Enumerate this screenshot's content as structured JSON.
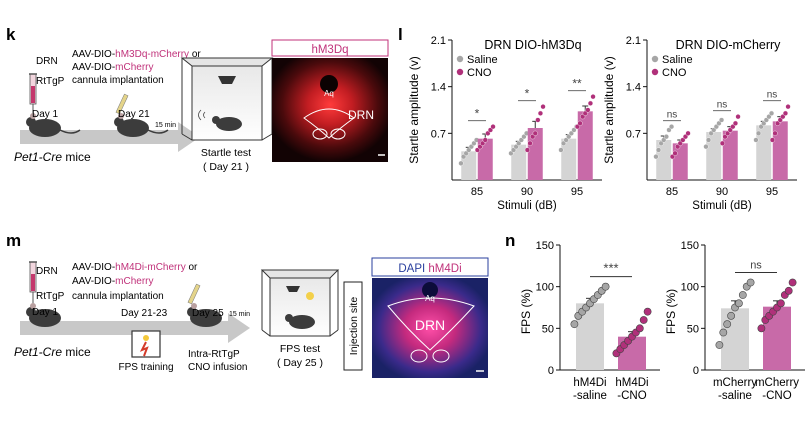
{
  "panel_k": {
    "letter": "k",
    "drn_label": "DRN",
    "rtgp_label": "RtTgP",
    "aav_line1_prefix": "AAV-DIO-",
    "aav_line1_construct": "hM3Dq-mCherry",
    "aav_line1_suffix": " or",
    "aav_line2_prefix": "AAV-DIO-",
    "aav_line2_construct": "mCherry",
    "cannula_text": "cannula implantation",
    "day1": "Day 1",
    "day21": "Day 21",
    "min15": "15 min",
    "mouse_line": "Pet1-Cre",
    "mouse_suffix": " mice",
    "test_title": "Startle test",
    "test_day": "( Day 21 )",
    "image_title": "hM3Dq",
    "image_aq": "Aq",
    "image_drn": "DRN"
  },
  "panel_l": {
    "letter": "l"
  },
  "panel_m": {
    "letter": "m",
    "drn_label": "DRN",
    "rtgp_label": "RtTgP",
    "aav_line1_prefix": "AAV-DIO-",
    "aav_line1_construct": "hM4Di-mCherry",
    "aav_line1_suffix": " or",
    "aav_line2_prefix": "AAV-DIO-",
    "aav_line2_construct": "mCherry",
    "cannula_text": "cannula implantation",
    "day1": "Day 1",
    "day21_23": "Day 21-23",
    "day25": "Day 25",
    "min15": "15 min",
    "mouse_line": "Pet1-Cre",
    "mouse_suffix": " mice",
    "fps_training": "FPS training",
    "infusion_line1": "Intra-RtTgP",
    "infusion_line2": "CNO infusion",
    "test_title": "FPS test",
    "test_day": "( Day 25 )",
    "injection_site": "Injection site",
    "image_dapi": "DAPI",
    "image_hm4di": "hM4Di",
    "image_aq": "Aq",
    "image_drn": "DRN"
  },
  "panel_n": {
    "letter": "n"
  },
  "colors": {
    "saline": "#d4d4d4",
    "saline_dot": "#a6a6a6",
    "cno": "#c86aa8",
    "cno_dot": "#b0307a",
    "magenta_text": "#c0327a",
    "arrow": "#c8c8c8",
    "red_tissue": "#e3262a",
    "blue_tissue": "#2a3f9e"
  },
  "chart_data": [
    {
      "id": "l1",
      "type": "bar",
      "title": "DRN DIO-hM3Dq",
      "xlabel": "Stimuli (dB)",
      "ylabel": "Startle amplitude (v)",
      "categories": [
        "85",
        "90",
        "95"
      ],
      "ylim": [
        0,
        2.1
      ],
      "yticks": [
        0.7,
        1.4,
        2.1
      ],
      "legend": [
        "Saline",
        "CNO"
      ],
      "series": [
        {
          "name": "Saline",
          "values": [
            0.43,
            0.53,
            0.62
          ],
          "errors": [
            0.06,
            0.05,
            0.06
          ],
          "points": [
            [
              0.25,
              0.35,
              0.4,
              0.45,
              0.5,
              0.55,
              0.6
            ],
            [
              0.4,
              0.45,
              0.5,
              0.55,
              0.6,
              0.65,
              0.7
            ],
            [
              0.45,
              0.55,
              0.6,
              0.65,
              0.7,
              0.75,
              0.8
            ]
          ]
        },
        {
          "name": "CNO",
          "values": [
            0.62,
            0.78,
            1.03
          ],
          "errors": [
            0.07,
            0.1,
            0.08
          ],
          "points": [
            [
              0.45,
              0.5,
              0.55,
              0.6,
              0.7,
              0.75,
              0.8
            ],
            [
              0.45,
              0.55,
              0.65,
              0.7,
              0.9,
              1.0,
              1.1
            ],
            [
              0.8,
              0.85,
              0.95,
              1.0,
              1.05,
              1.15,
              1.25
            ]
          ]
        }
      ],
      "significance": [
        "*",
        "*",
        "**"
      ]
    },
    {
      "id": "l2",
      "type": "bar",
      "title": "DRN DIO-mCherry",
      "xlabel": "Stimuli (dB)",
      "ylabel": "Startle amplitude (v)",
      "categories": [
        "85",
        "90",
        "95"
      ],
      "ylim": [
        0,
        2.1
      ],
      "yticks": [
        0.7,
        1.4,
        2.1
      ],
      "legend": [
        "Saline",
        "CNO"
      ],
      "series": [
        {
          "name": "Saline",
          "values": [
            0.6,
            0.72,
            0.82
          ],
          "errors": [
            0.06,
            0.05,
            0.06
          ],
          "points": [
            [
              0.35,
              0.45,
              0.55,
              0.6,
              0.65,
              0.75,
              0.8
            ],
            [
              0.5,
              0.6,
              0.7,
              0.75,
              0.8,
              0.85,
              0.9
            ],
            [
              0.6,
              0.7,
              0.8,
              0.85,
              0.9,
              0.95,
              1.0
            ]
          ]
        },
        {
          "name": "CNO",
          "values": [
            0.55,
            0.74,
            0.88
          ],
          "errors": [
            0.05,
            0.06,
            0.07
          ],
          "points": [
            [
              0.35,
              0.4,
              0.5,
              0.55,
              0.6,
              0.65,
              0.7
            ],
            [
              0.55,
              0.65,
              0.7,
              0.75,
              0.8,
              0.85,
              0.95
            ],
            [
              0.6,
              0.7,
              0.85,
              0.9,
              0.95,
              1.0,
              1.1
            ]
          ]
        }
      ],
      "significance": [
        "ns",
        "ns",
        "ns"
      ]
    },
    {
      "id": "n1",
      "type": "bar",
      "ylabel": "FPS (%)",
      "categories": [
        "hM4Di\n-saline",
        "hM4Di\n-CNO"
      ],
      "ylim": [
        0,
        150
      ],
      "yticks": [
        0,
        50,
        100,
        150
      ],
      "values": [
        80,
        40
      ],
      "errors": [
        6,
        6
      ],
      "points": [
        [
          55,
          65,
          70,
          75,
          80,
          85,
          90,
          95,
          100
        ],
        [
          20,
          25,
          30,
          35,
          40,
          45,
          50,
          60,
          70
        ]
      ],
      "significance": "***"
    },
    {
      "id": "n2",
      "type": "bar",
      "ylabel": "FPS (%)",
      "categories": [
        "mCherry\n-saline",
        "mCherry\n-CNO"
      ],
      "ylim": [
        0,
        150
      ],
      "yticks": [
        0,
        50,
        100,
        150
      ],
      "values": [
        74,
        76
      ],
      "errors": [
        9,
        7
      ],
      "points": [
        [
          30,
          45,
          55,
          65,
          75,
          80,
          90,
          100,
          105
        ],
        [
          50,
          60,
          65,
          70,
          75,
          80,
          90,
          95,
          105
        ]
      ],
      "significance": "ns"
    }
  ]
}
